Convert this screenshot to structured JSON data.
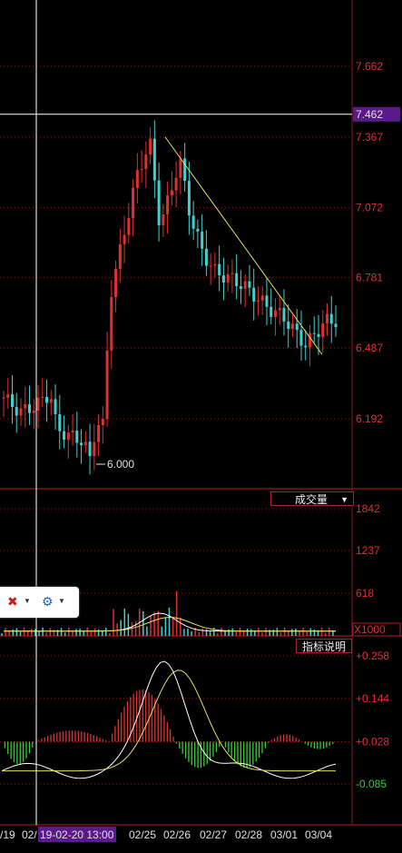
{
  "price_panel": {
    "y_ticks": [
      "7.662",
      "7.367",
      "7.072",
      "6.781",
      "6.487",
      "6.192"
    ],
    "crosshair_price": "7.462",
    "low_label": "6.000"
  },
  "volume_panel": {
    "tab_label": "成交量",
    "y_ticks": [
      "1842",
      "1237",
      "618"
    ],
    "unit_label": "X1000"
  },
  "indicator_panel": {
    "tab_label": "指标说明",
    "y_ticks": [
      "+0.258",
      "+0.144",
      "+0.028",
      "-0.085"
    ]
  },
  "x_axis": {
    "dates": [
      "/19",
      "02/",
      "02/25",
      "02/26",
      "02/27",
      "02/28",
      "03/01",
      "03/04"
    ],
    "crosshair_date": "19-02-20 13:00"
  },
  "colors": {
    "up": "#e03030",
    "down": "#40d0d0",
    "grid": "#8a1a1a",
    "trend": "#e8e060",
    "highlight": "#5a1a8a"
  },
  "toolbar": {
    "icons": [
      "cross-chart-icon",
      "gear-icon"
    ]
  },
  "chart_data": {
    "type": "candlestick",
    "y_axis_ticks": [
      7.662,
      7.367,
      7.072,
      6.781,
      6.487,
      6.192
    ],
    "crosshair": {
      "price": 7.462,
      "time": "19-02-20 13:00"
    },
    "min_label": 6.0,
    "trend_line": [
      {
        "time": "02/25",
        "price": 7.367
      },
      {
        "time": "03/04",
        "price": 6.46
      }
    ],
    "price_path": [
      [
        0.0,
        6.28
      ],
      [
        0.05,
        6.22
      ],
      [
        0.1,
        6.25
      ],
      [
        0.14,
        6.3
      ],
      [
        0.16,
        6.15
      ],
      [
        0.2,
        6.12
      ],
      [
        0.24,
        6.1
      ],
      [
        0.26,
        6.02
      ],
      [
        0.28,
        6.18
      ],
      [
        0.3,
        6.16
      ],
      [
        0.32,
        6.7
      ],
      [
        0.36,
        6.95
      ],
      [
        0.4,
        7.2
      ],
      [
        0.44,
        7.35
      ],
      [
        0.47,
        7.0
      ],
      [
        0.5,
        7.12
      ],
      [
        0.53,
        7.28
      ],
      [
        0.56,
        7.05
      ],
      [
        0.6,
        6.88
      ],
      [
        0.64,
        6.8
      ],
      [
        0.68,
        6.78
      ],
      [
        0.72,
        6.75
      ],
      [
        0.76,
        6.7
      ],
      [
        0.8,
        6.65
      ],
      [
        0.84,
        6.62
      ],
      [
        0.88,
        6.55
      ],
      [
        0.91,
        6.5
      ],
      [
        0.94,
        6.55
      ],
      [
        0.97,
        6.6
      ],
      [
        1.0,
        6.6
      ]
    ],
    "volume_ticks": [
      1842,
      1237,
      618
    ],
    "volume_unit": "X1000",
    "indicator_ticks": [
      0.258,
      0.144,
      0.028,
      -0.085
    ]
  }
}
